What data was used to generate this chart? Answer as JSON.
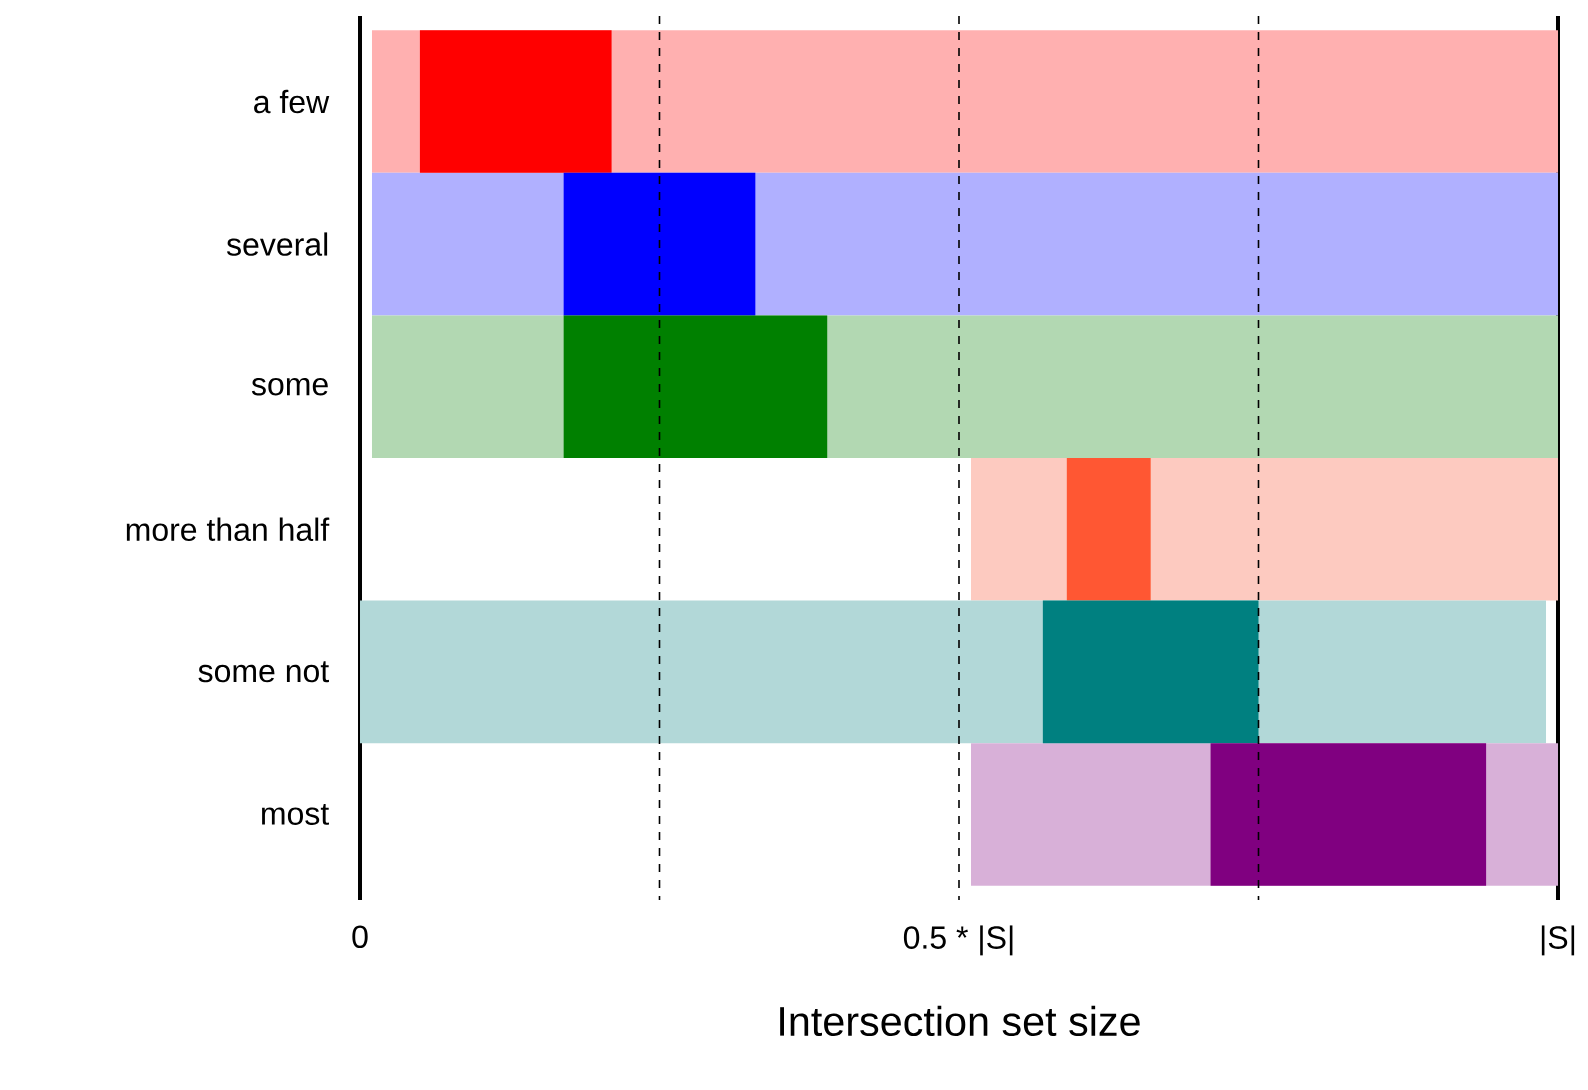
{
  "chart_data": {
    "type": "bar",
    "orientation": "horizontal",
    "xlabel": "Intersection set size",
    "categories": [
      "a few",
      "several",
      "some",
      "more than half",
      "some not",
      "most"
    ],
    "xlim": [
      0,
      1
    ],
    "xticks": [
      0,
      {
        "value": 0.5,
        "label": "0.5 * |S|"
      },
      {
        "value": 1,
        "label": "|S|"
      }
    ],
    "series": [
      {
        "colors": [
          "#ffb0b0",
          "#b0b0ff",
          "#b2d8b2",
          "#fdcac0",
          "#b2d8d8",
          "#d8b0d8"
        ],
        "base": [
          0.01,
          0.01,
          0.01,
          0.51,
          0,
          0.51
        ],
        "values": [
          0.99,
          0.99,
          0.99,
          0.49,
          0.99,
          0.49
        ]
      },
      {
        "colors": [
          "#ff0000",
          "#0000ff",
          "#008000",
          "#ff5733",
          "#008080",
          "#800080"
        ],
        "base": [
          0.05,
          0.17,
          0.17,
          0.59,
          0.57,
          0.71
        ],
        "values": [
          0.16,
          0.16,
          0.22,
          0.07,
          0.18,
          0.23
        ]
      }
    ],
    "ref_lines": [
      {
        "axis": "x",
        "value": 0.25,
        "line_style": "dashed"
      },
      {
        "axis": "x",
        "value": 0.5,
        "line_style": "dashed"
      },
      {
        "axis": "x",
        "value": 0.75,
        "line_style": "dashed"
      }
    ]
  }
}
